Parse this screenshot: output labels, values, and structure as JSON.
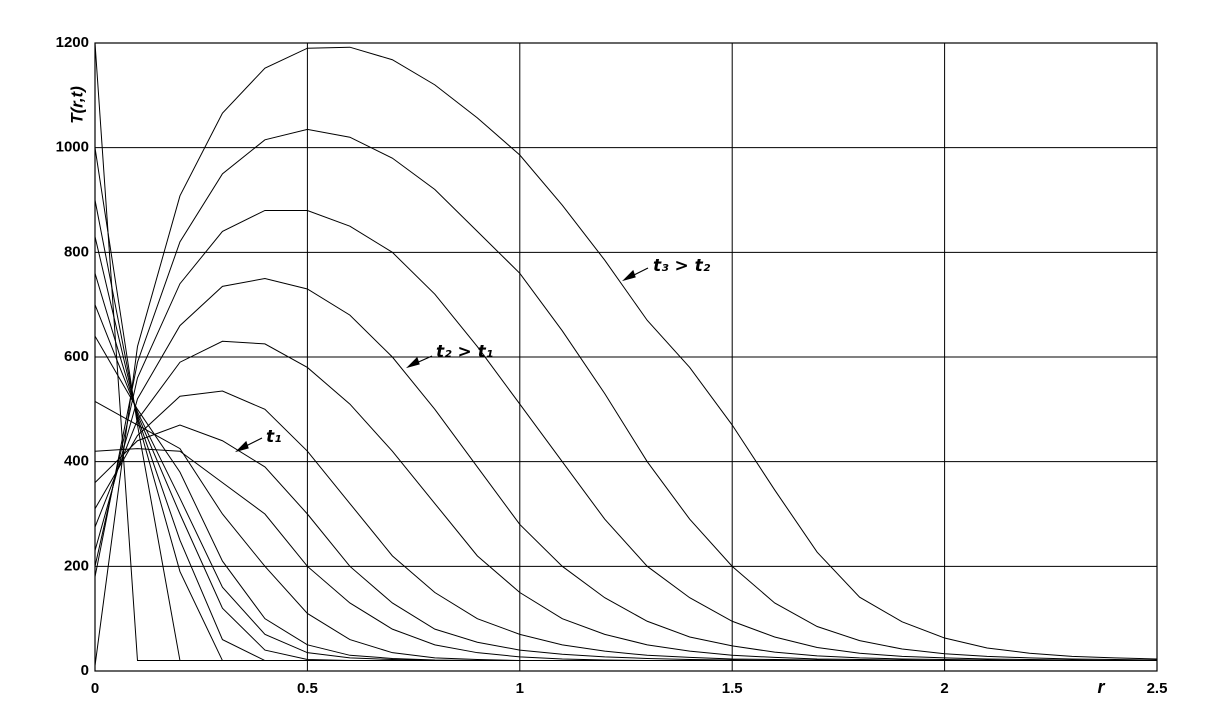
{
  "chart_data": {
    "type": "line",
    "xlabel": "r",
    "ylabel": "T(r,t)",
    "x": [
      0,
      0.1,
      0.2,
      0.3,
      0.4,
      0.5,
      0.6,
      0.7,
      0.8,
      0.9,
      1,
      1.1,
      1.2,
      1.3,
      1.4,
      1.5,
      1.6,
      1.7,
      1.8,
      1.9,
      2,
      2.1,
      2.2,
      2.3,
      2.4,
      2.5
    ],
    "color": "#000000",
    "series": [
      {
        "values": [
          1200,
          20,
          20,
          20,
          20,
          20,
          20,
          20,
          20,
          20,
          20,
          20,
          20,
          20,
          20,
          20,
          20,
          20,
          20,
          20,
          20,
          20,
          20,
          20,
          20,
          20
        ]
      },
      {
        "values": [
          1000,
          470,
          20,
          20,
          20,
          20,
          20,
          20,
          20,
          20,
          20,
          20,
          20,
          20,
          20,
          20,
          20,
          20,
          20,
          20,
          20,
          20,
          20,
          20,
          20,
          20
        ]
      },
      {
        "values": [
          900,
          480,
          190,
          20,
          20,
          20,
          20,
          20,
          20,
          20,
          20,
          20,
          20,
          20,
          20,
          20,
          20,
          20,
          20,
          20,
          20,
          20,
          20,
          20,
          20,
          20
        ]
      },
      {
        "values": [
          830,
          485,
          250,
          60,
          20,
          20,
          20,
          20,
          20,
          20,
          20,
          20,
          20,
          20,
          20,
          20,
          20,
          20,
          20,
          20,
          20,
          20,
          20,
          20,
          20,
          20
        ]
      },
      {
        "values": [
          760,
          490,
          300,
          120,
          40,
          22,
          20,
          20,
          20,
          20,
          20,
          20,
          20,
          20,
          20,
          20,
          20,
          20,
          20,
          20,
          20,
          20,
          20,
          20,
          20,
          20
        ]
      },
      {
        "values": [
          700,
          495,
          330,
          160,
          70,
          35,
          25,
          22,
          20,
          20,
          20,
          20,
          20,
          20,
          20,
          20,
          20,
          20,
          20,
          20,
          20,
          20,
          20,
          20,
          20,
          20
        ]
      },
      {
        "values": [
          640,
          500,
          380,
          210,
          100,
          50,
          30,
          24,
          21,
          20,
          20,
          20,
          20,
          20,
          20,
          20,
          20,
          20,
          20,
          20,
          20,
          20,
          20,
          20,
          20,
          20
        ]
      },
      {
        "values": [
          515,
          470,
          425,
          300,
          200,
          110,
          60,
          35,
          25,
          22,
          20,
          20,
          20,
          20,
          20,
          20,
          20,
          20,
          20,
          20,
          20,
          20,
          20,
          20,
          20,
          20
        ]
      },
      {
        "values": [
          420,
          425,
          420,
          360,
          300,
          200,
          130,
          80,
          50,
          35,
          27,
          23,
          21,
          20,
          20,
          20,
          20,
          20,
          20,
          20,
          20,
          20,
          20,
          20,
          20,
          20
        ]
      },
      {
        "values": [
          360,
          440,
          470,
          440,
          390,
          300,
          200,
          130,
          80,
          55,
          40,
          32,
          27,
          24,
          22,
          21,
          20,
          20,
          20,
          20,
          20,
          20,
          20,
          20,
          20,
          20
        ]
      },
      {
        "values": [
          310,
          450,
          525,
          535,
          500,
          420,
          320,
          220,
          150,
          100,
          70,
          50,
          38,
          30,
          26,
          23,
          22,
          21,
          20,
          20,
          20,
          20,
          20,
          20,
          20,
          20
        ]
      },
      {
        "values": [
          275,
          480,
          590,
          630,
          625,
          580,
          510,
          420,
          320,
          220,
          150,
          100,
          70,
          50,
          38,
          30,
          26,
          23,
          22,
          21,
          20,
          20,
          20,
          20,
          20,
          20
        ]
      },
      {
        "values": [
          230,
          520,
          660,
          735,
          750,
          730,
          680,
          600,
          500,
          390,
          280,
          200,
          140,
          95,
          65,
          48,
          36,
          29,
          25,
          23,
          22,
          21,
          20,
          20,
          20,
          20
        ]
      },
      {
        "values": [
          200,
          560,
          740,
          840,
          880,
          880,
          850,
          800,
          720,
          620,
          510,
          400,
          290,
          200,
          140,
          95,
          65,
          45,
          34,
          28,
          25,
          23,
          22,
          21,
          20,
          20
        ]
      },
      {
        "values": [
          180,
          590,
          820,
          950,
          1015,
          1035,
          1020,
          980,
          920,
          840,
          760,
          650,
          530,
          400,
          290,
          200,
          130,
          85,
          58,
          42,
          33,
          28,
          25,
          23,
          22,
          21
        ]
      },
      {
        "values": [
          10,
          620,
          908,
          1066,
          1152,
          1190,
          1192,
          1168,
          1120,
          1057,
          986,
          890,
          785,
          670,
          580,
          470,
          346,
          227,
          141,
          94,
          63,
          44,
          34,
          28,
          25,
          23
        ]
      }
    ],
    "xlim": [
      0,
      2.5
    ],
    "ylim": [
      0,
      1200
    ],
    "xticks": [
      0,
      0.5,
      1,
      1.5,
      2,
      2.5
    ],
    "yticks": [
      0,
      200,
      400,
      600,
      800,
      1000,
      1200
    ],
    "grid": true,
    "annotations": [
      "t₁",
      "t₂ > t₁",
      "t₃ > t₂"
    ]
  }
}
